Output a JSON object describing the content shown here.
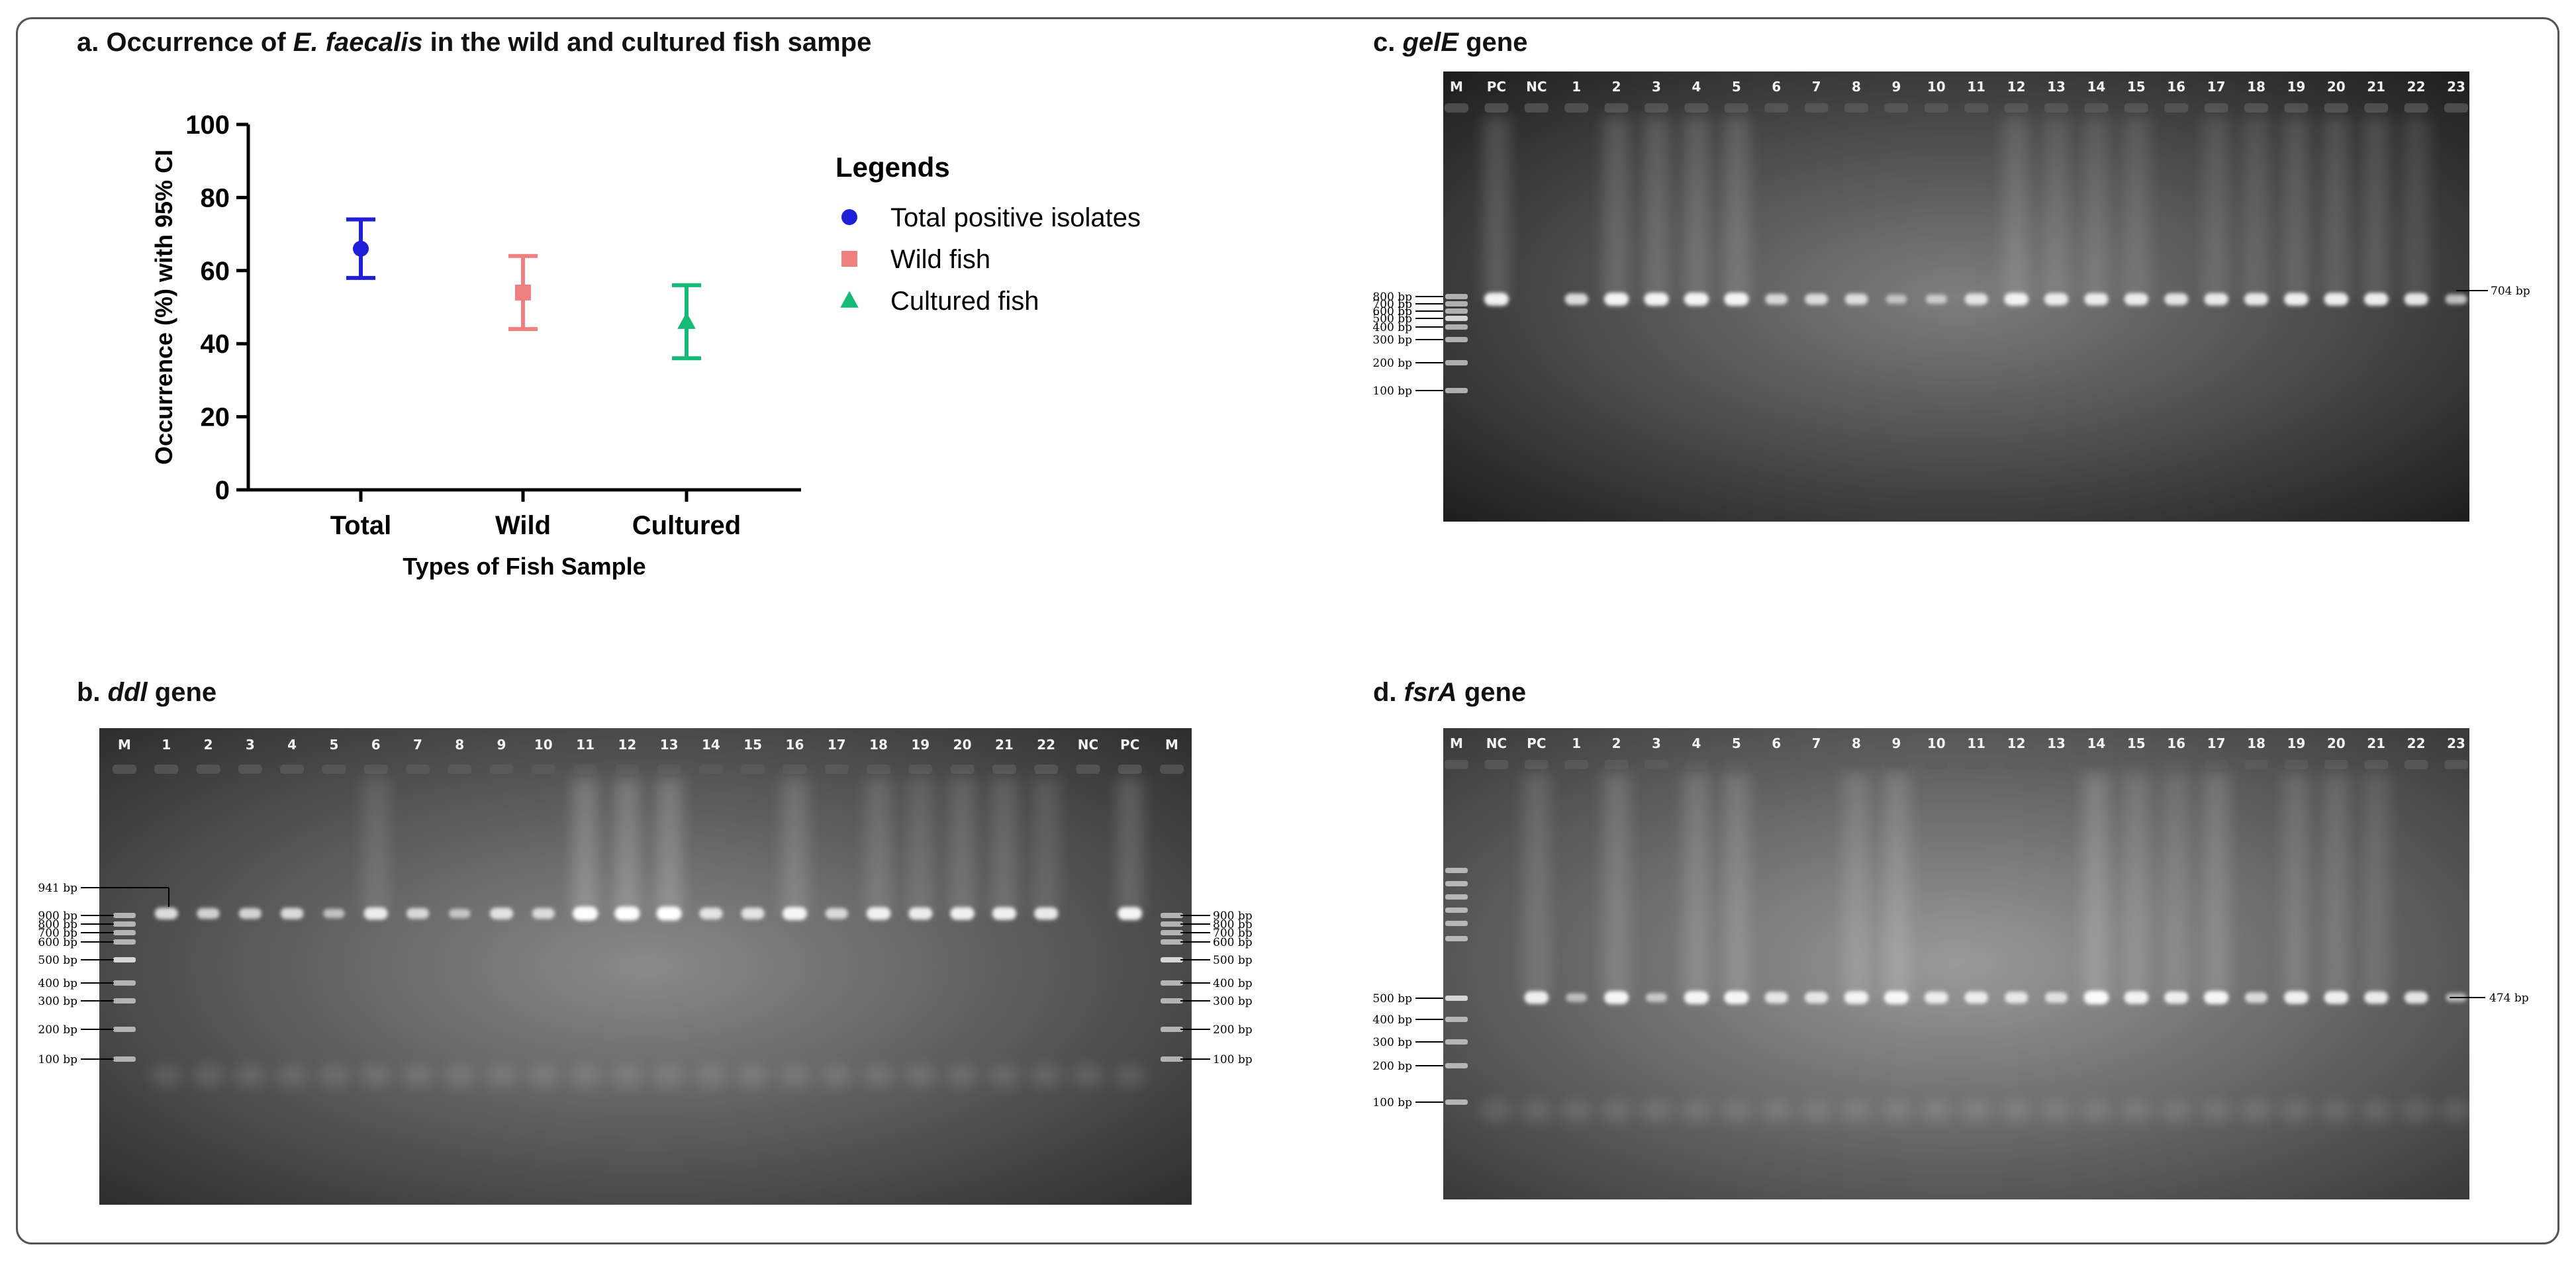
{
  "panel_a": {
    "title_pre": "a. Occurrence of ",
    "title_italic": "E. faecalis",
    "title_post": " in the wild and cultured fish sampe"
  },
  "panel_b": {
    "title_pre": "b. ",
    "title_italic": "ddl",
    "title_post": " gene"
  },
  "panel_c": {
    "title_pre": "c. ",
    "title_italic": "gelE",
    "title_post": " gene"
  },
  "panel_d": {
    "title_pre": "d. ",
    "title_italic": "fsrA",
    "title_post": " gene"
  },
  "chart_data": {
    "type": "scatter",
    "title": "",
    "xlabel": "Types of Fish Sample",
    "ylabel": "Occurrence (%) with 95%  CI",
    "categories": [
      "Total",
      "Wild",
      "Cultured"
    ],
    "ylim": [
      0,
      100
    ],
    "yticks": [
      0,
      20,
      40,
      60,
      80,
      100
    ],
    "grid": false,
    "legend_title": "Legends",
    "legend_position": "right",
    "series": [
      {
        "name": "Total positive isolates",
        "category": "Total",
        "value": 66,
        "ci": [
          58,
          74
        ],
        "color": "#1f1fd8",
        "marker": "circle"
      },
      {
        "name": "Wild fish",
        "category": "Wild",
        "value": 54,
        "ci": [
          44,
          64
        ],
        "color": "#f08080",
        "marker": "square"
      },
      {
        "name": "Cultured fish",
        "category": "Cultured",
        "value": 46,
        "ci": [
          36,
          56
        ],
        "color": "#17b978",
        "marker": "triangle"
      }
    ]
  },
  "gels": {
    "ddl": {
      "lanes": [
        "M",
        "1",
        "2",
        "3",
        "4",
        "5",
        "6",
        "7",
        "8",
        "9",
        "10",
        "11",
        "12",
        "13",
        "14",
        "15",
        "16",
        "17",
        "18",
        "19",
        "20",
        "21",
        "22",
        "NC",
        "PC",
        "M"
      ],
      "band_intensity": [
        0,
        0.7,
        0.6,
        0.6,
        0.65,
        0.4,
        0.8,
        0.6,
        0.4,
        0.7,
        0.6,
        1,
        1,
        1,
        0.7,
        0.7,
        0.9,
        0.6,
        0.85,
        0.8,
        0.85,
        0.85,
        0.8,
        0,
        0.9,
        0
      ],
      "left_markers": [
        "941 bp",
        "900 bp",
        "800 bp",
        "700 bp",
        "600 bp",
        "500 bp",
        "400 bp",
        "300 bp",
        "200 bp",
        "100 bp"
      ],
      "right_markers": [
        "900 bp",
        "800 bp",
        "700 bp",
        "600 bp",
        "500 bp",
        "400 bp",
        "300 bp",
        "200 bp",
        "100 bp"
      ]
    },
    "gelE": {
      "lanes": [
        "M",
        "PC",
        "NC",
        "1",
        "2",
        "3",
        "4",
        "5",
        "6",
        "7",
        "8",
        "9",
        "10",
        "11",
        "12",
        "13",
        "14",
        "15",
        "16",
        "17",
        "18",
        "19",
        "20",
        "21",
        "22",
        "23"
      ],
      "band_intensity": [
        0,
        0.9,
        0,
        0.7,
        0.9,
        0.9,
        0.9,
        0.9,
        0.6,
        0.65,
        0.65,
        0.35,
        0.4,
        0.7,
        0.85,
        0.8,
        0.8,
        0.8,
        0.75,
        0.8,
        0.8,
        0.85,
        0.85,
        0.85,
        0.8,
        0.5
      ],
      "left_markers": [
        "800 bp",
        "700 bp",
        "600 bp",
        "500 bp",
        "400 bp",
        "300 bp",
        "200 bp",
        "100 bp"
      ],
      "right_marker": "704 bp"
    },
    "fsrA": {
      "lanes": [
        "M",
        "NC",
        "PC",
        "1",
        "2",
        "3",
        "4",
        "5",
        "6",
        "7",
        "8",
        "9",
        "10",
        "11",
        "12",
        "13",
        "14",
        "15",
        "16",
        "17",
        "18",
        "19",
        "20",
        "21",
        "22",
        "23"
      ],
      "band_intensity": [
        0,
        0,
        0.85,
        0.35,
        0.9,
        0.4,
        0.9,
        0.9,
        0.7,
        0.7,
        0.85,
        0.9,
        0.75,
        0.75,
        0.7,
        0.6,
        0.95,
        0.85,
        0.8,
        0.9,
        0.6,
        0.85,
        0.85,
        0.8,
        0.75,
        0.35
      ],
      "left_markers": [
        "500 bp",
        "400 bp",
        "300 bp",
        "200 bp",
        "100 bp"
      ],
      "right_marker": "474 bp"
    }
  }
}
